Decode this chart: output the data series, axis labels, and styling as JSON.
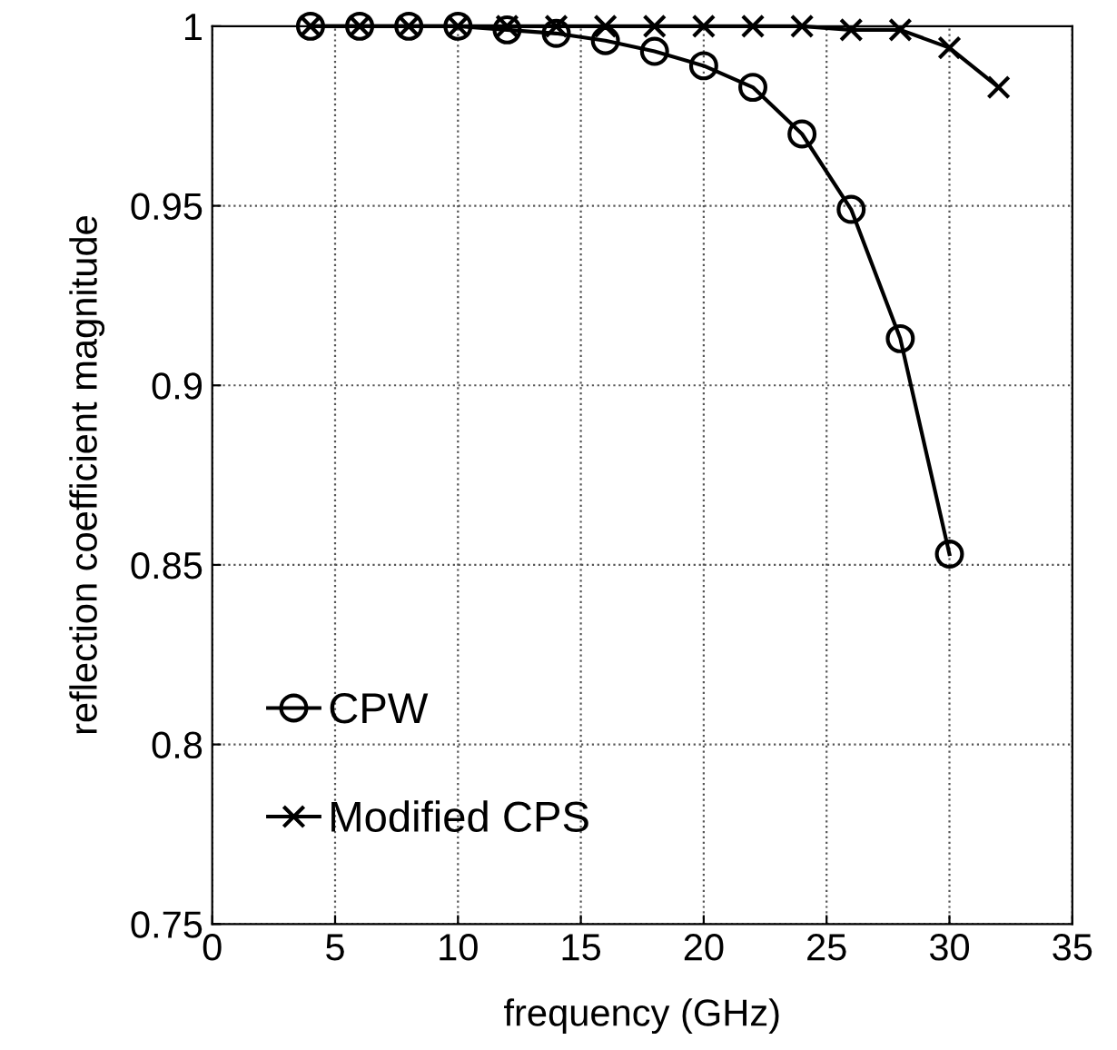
{
  "chart_data": {
    "type": "line",
    "xlabel": "frequency (GHz)",
    "ylabel": "reflection coefficient magnitude",
    "xlim": [
      0,
      35
    ],
    "xticks": [
      0,
      5,
      10,
      15,
      20,
      25,
      30,
      35
    ],
    "ylim": [
      0.75,
      1
    ],
    "yticks": [
      0.75,
      0.8,
      0.85,
      0.9,
      0.95,
      1
    ],
    "grid": true,
    "legend": "bottom left",
    "series": [
      {
        "name": "CPW",
        "color": "#000000",
        "marker": "circle",
        "x": [
          4,
          6,
          8,
          10,
          12,
          14,
          16,
          18,
          20,
          22,
          24,
          26,
          28,
          30
        ],
        "values": [
          1.0,
          1.0,
          1.0,
          1.0,
          0.999,
          0.998,
          0.996,
          0.993,
          0.989,
          0.983,
          0.97,
          0.949,
          0.913,
          0.853
        ]
      },
      {
        "name": "Modified CPS",
        "color": "#000000",
        "marker": "cross",
        "x": [
          4,
          6,
          8,
          10,
          12,
          14,
          16,
          18,
          20,
          22,
          24,
          26,
          28,
          30,
          32
        ],
        "values": [
          1.0,
          1.0,
          1.0,
          1.0,
          1.0,
          1.0,
          1.0,
          1.0,
          1.0,
          1.0,
          1.0,
          0.999,
          0.999,
          0.994,
          0.983
        ]
      }
    ]
  }
}
